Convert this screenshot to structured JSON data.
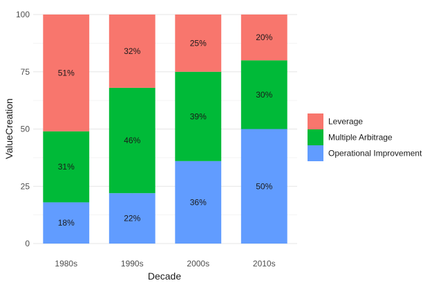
{
  "chart_data": {
    "type": "bar",
    "stacked": true,
    "xlabel": "Decade",
    "ylabel": "ValueCreation",
    "ylim": [
      0,
      100
    ],
    "yticks": [
      0,
      25,
      50,
      75,
      100
    ],
    "categories": [
      "1980s",
      "1990s",
      "2000s",
      "2010s"
    ],
    "series": [
      {
        "name": "Operational Improvement",
        "color": "#619CFF",
        "values": [
          18,
          22,
          36,
          50
        ],
        "labels": [
          "18%",
          "22%",
          "36%",
          "50%"
        ]
      },
      {
        "name": "Multiple Arbitrage",
        "color": "#00BA38",
        "values": [
          31,
          46,
          39,
          30
        ],
        "labels": [
          "31%",
          "46%",
          "39%",
          "30%"
        ]
      },
      {
        "name": "Leverage",
        "color": "#F8766D",
        "values": [
          51,
          32,
          25,
          20
        ],
        "labels": [
          "51%",
          "32%",
          "25%",
          "20%"
        ]
      }
    ],
    "legend": {
      "position": "right",
      "order": [
        "Leverage",
        "Multiple Arbitrage",
        "Operational Improvement"
      ]
    },
    "grid": true
  }
}
